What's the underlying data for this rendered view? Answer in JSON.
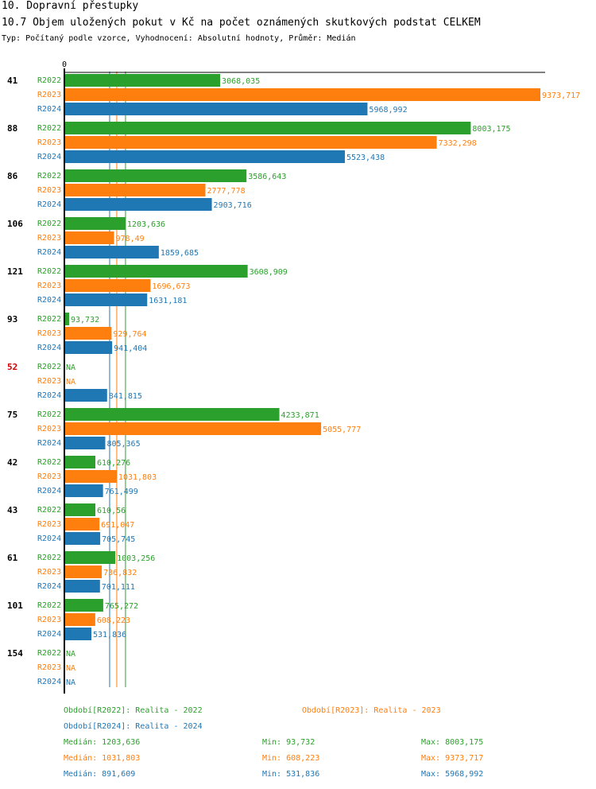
{
  "header": {
    "title": "10. Dopravní přestupky",
    "subtitle": "10.7 Objem uložených pokut v Kč na počet oznámených skutkových podstat CELKEM",
    "type_line": "Typ: Počítaný podle vzorce, Vyhodnocení: Absolutní hodnoty, Průměr: Medián"
  },
  "colors": {
    "R2022": "#2ca02c",
    "R2023": "#ff7f0e",
    "R2024": "#1f77b4",
    "highlight": "#cc0000"
  },
  "chart_data": {
    "type": "bar",
    "orientation": "horizontal",
    "axis_zero_label": "0",
    "xlim": [
      0,
      9373.717
    ],
    "series_names": [
      "R2022",
      "R2023",
      "R2024"
    ],
    "groups": [
      {
        "label": "41",
        "highlight": false,
        "values": [
          3068.035,
          9373.717,
          5968.992
        ],
        "labels": [
          "3068,035",
          "9373,717",
          "5968,992"
        ]
      },
      {
        "label": "88",
        "highlight": false,
        "values": [
          8003.175,
          7332.298,
          5523.438
        ],
        "labels": [
          "8003,175",
          "7332,298",
          "5523,438"
        ]
      },
      {
        "label": "86",
        "highlight": false,
        "values": [
          3586.643,
          2777.778,
          2903.716
        ],
        "labels": [
          "3586,643",
          "2777,778",
          "2903,716"
        ]
      },
      {
        "label": "106",
        "highlight": false,
        "values": [
          1203.636,
          978.49,
          1859.685
        ],
        "labels": [
          "1203,636",
          "978,49",
          "1859,685"
        ]
      },
      {
        "label": "121",
        "highlight": false,
        "values": [
          3608.909,
          1696.673,
          1631.181
        ],
        "labels": [
          "3608,909",
          "1696,673",
          "1631,181"
        ]
      },
      {
        "label": "93",
        "highlight": false,
        "values": [
          93.732,
          929.764,
          941.404
        ],
        "labels": [
          "93,732",
          "929,764",
          "941,404"
        ]
      },
      {
        "label": "52",
        "highlight": true,
        "values": [
          null,
          null,
          841.815
        ],
        "labels": [
          "NA",
          "NA",
          "841,815"
        ]
      },
      {
        "label": "75",
        "highlight": false,
        "values": [
          4233.871,
          5055.777,
          805.365
        ],
        "labels": [
          "4233,871",
          "5055,777",
          "805,365"
        ]
      },
      {
        "label": "42",
        "highlight": false,
        "values": [
          610.276,
          1031.803,
          761.499
        ],
        "labels": [
          "610,276",
          "1031,803",
          "761,499"
        ]
      },
      {
        "label": "43",
        "highlight": false,
        "values": [
          610.56,
          691.047,
          705.745
        ],
        "labels": [
          "610,56",
          "691,047",
          "705,745"
        ]
      },
      {
        "label": "61",
        "highlight": false,
        "values": [
          1003.256,
          736.832,
          701.111
        ],
        "labels": [
          "1003,256",
          "736,832",
          "701,111"
        ]
      },
      {
        "label": "101",
        "highlight": false,
        "values": [
          765.272,
          608.223,
          531.836
        ],
        "labels": [
          "765,272",
          "608,223",
          "531,836"
        ]
      },
      {
        "label": "154",
        "highlight": false,
        "values": [
          null,
          null,
          null
        ],
        "labels": [
          "NA",
          "NA",
          "NA"
        ]
      }
    ],
    "medians": [
      1203.636,
      1031.803,
      891.609
    ]
  },
  "legend": {
    "period_2022": "Období[R2022]: Realita - 2022",
    "period_2023": "Období[R2023]: Realita - 2023",
    "period_2024": "Období[R2024]: Realita - 2024",
    "stats": [
      {
        "median": "Medián: 1203,636",
        "min": "Min: 93,732",
        "max": "Max: 8003,175"
      },
      {
        "median": "Medián: 1031,803",
        "min": "Min: 608,223",
        "max": "Max: 9373,717"
      },
      {
        "median": "Medián: 891,609",
        "min": "Min: 531,836",
        "max": "Max: 5968,992"
      }
    ]
  }
}
